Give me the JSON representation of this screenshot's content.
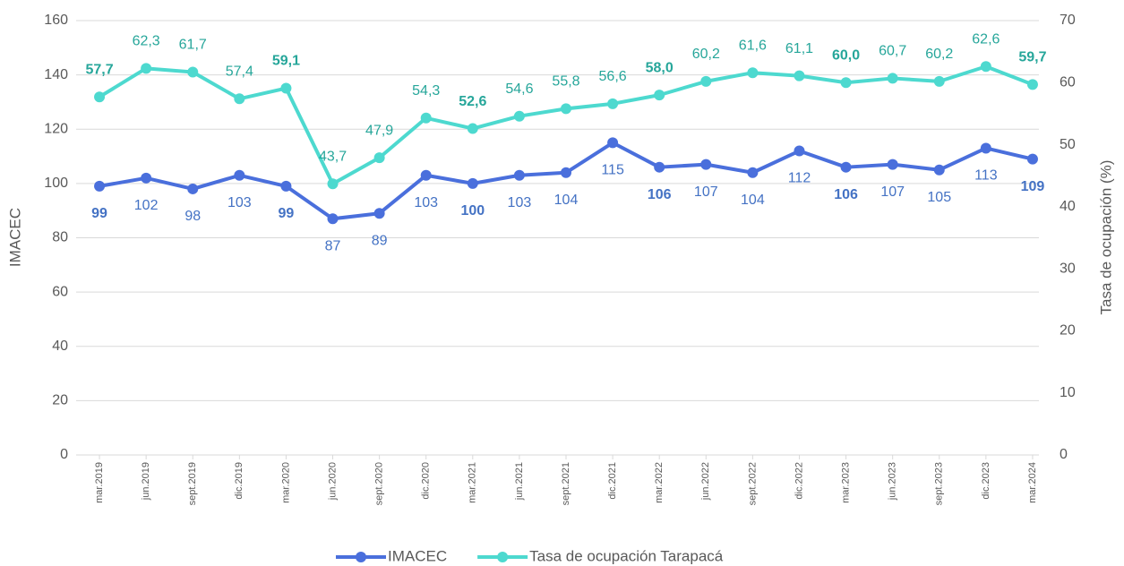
{
  "chart_data": {
    "type": "line",
    "categories": [
      "mar.2019",
      "jun.2019",
      "sept.2019",
      "dic.2019",
      "mar.2020",
      "jun.2020",
      "sept.2020",
      "dic.2020",
      "mar.2021",
      "jun.2021",
      "sept.2021",
      "dic.2021",
      "mar.2022",
      "jun.2022",
      "sept.2022",
      "dic.2022",
      "mar.2023",
      "jun.2023",
      "sept.2023",
      "dic.2023",
      "mar.2024"
    ],
    "series": [
      {
        "name": "IMACEC",
        "color": "#4a6fdc",
        "label_color": "#4472c4",
        "values": [
          99,
          102,
          98,
          103,
          99,
          87,
          89,
          103,
          100,
          103,
          104,
          115,
          106,
          107,
          104,
          112,
          106,
          107,
          105,
          113,
          109
        ]
      },
      {
        "name": "Tasa de ocupación Tarapacá",
        "color": "#4dd9cf",
        "label_color": "#26a69a",
        "axis": "y2",
        "values": [
          57.7,
          62.3,
          61.7,
          57.4,
          59.1,
          43.7,
          47.9,
          54.3,
          52.6,
          54.6,
          55.8,
          56.6,
          58.0,
          60.2,
          61.6,
          61.1,
          60.0,
          60.7,
          60.2,
          62.6,
          59.7
        ],
        "value_labels": [
          "57,7",
          "62,3",
          "61,7",
          "57,4",
          "59,1",
          "43,7",
          "47,9",
          "54,3",
          "52,6",
          "54,6",
          "55,8",
          "56,6",
          "58,0",
          "60,2",
          "61,6",
          "61,1",
          "60,0",
          "60,7",
          "60,2",
          "62,6",
          "59,7"
        ]
      }
    ],
    "y_label": "IMACEC",
    "y2_label": "Tasa de ocupación (%)",
    "ylim": [
      0,
      160
    ],
    "yticks": [
      0,
      20,
      40,
      60,
      80,
      100,
      120,
      140,
      160
    ],
    "y2lim": [
      0,
      70
    ],
    "y2ticks": [
      0,
      10,
      20,
      30,
      40,
      50,
      60,
      70
    ],
    "grid": true,
    "legend": "bottom"
  }
}
